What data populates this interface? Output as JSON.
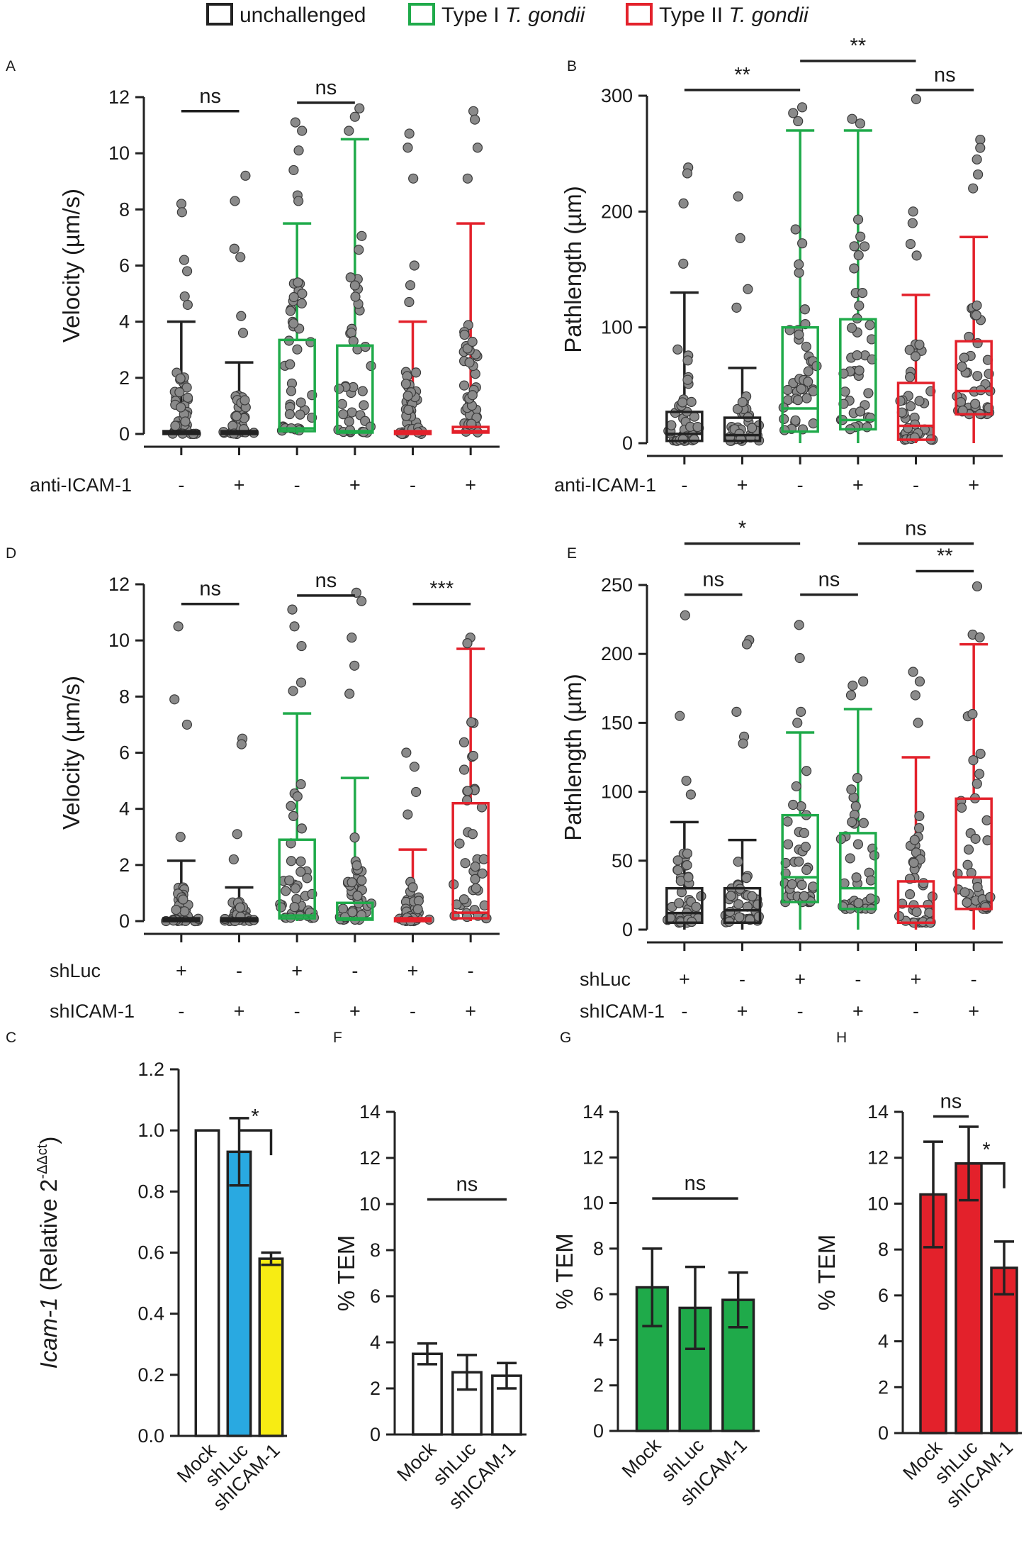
{
  "legend": [
    {
      "label": "unchallenged",
      "italic": "",
      "color": "#222222"
    },
    {
      "label": "Type I ",
      "italic": "T. gondii",
      "color": "#1faa4a"
    },
    {
      "label": "Type II ",
      "italic": "T. gondii",
      "color": "#e3212b"
    }
  ],
  "chart_data": [
    {
      "panel": "A",
      "type": "box-scatter",
      "ylabel": "Velocity (µm/s)",
      "ylim": [
        0,
        12
      ],
      "yticks": [
        0,
        2,
        4,
        6,
        8,
        10,
        12
      ],
      "condition_rows": [
        {
          "label": "anti-ICAM-1",
          "values": [
            "-",
            "+",
            "-",
            "+",
            "-",
            "+"
          ]
        }
      ],
      "groups": [
        {
          "color": "black",
          "min": 0,
          "q1": 0,
          "median": 0.05,
          "q3": 0.1,
          "max": 4.0,
          "outliers": [
            8.2,
            7.9,
            6.2,
            5.8,
            4.9,
            4.6
          ]
        },
        {
          "color": "black",
          "min": 0,
          "q1": 0,
          "median": 0.05,
          "q3": 0.1,
          "max": 2.55,
          "outliers": [
            9.2,
            8.3,
            6.6,
            6.3,
            4.2,
            3.6
          ]
        },
        {
          "color": "green",
          "min": 0,
          "q1": 0.1,
          "median": 0.2,
          "q3": 3.35,
          "max": 7.5,
          "outliers": [
            11.1,
            10.8,
            10.1,
            9.4,
            8.5,
            8.3
          ]
        },
        {
          "color": "green",
          "min": 0,
          "q1": 0.05,
          "median": 0.1,
          "q3": 3.15,
          "max": 10.5,
          "outliers": [
            11.6,
            11.3,
            10.8
          ]
        },
        {
          "color": "red",
          "min": 0,
          "q1": 0,
          "median": 0.05,
          "q3": 0.1,
          "max": 4.0,
          "outliers": [
            10.7,
            10.2,
            9.1,
            6.0,
            5.3,
            4.7
          ]
        },
        {
          "color": "red",
          "min": 0,
          "q1": 0.05,
          "median": 0.1,
          "q3": 0.25,
          "max": 7.5,
          "outliers": [
            11.5,
            11.2,
            10.2,
            9.1
          ]
        }
      ],
      "significance": [
        {
          "from": 1,
          "to": 2,
          "level": 11.5,
          "label": "ns"
        },
        {
          "from": 3,
          "to": 4,
          "level": 11.8,
          "label": "ns"
        }
      ]
    },
    {
      "panel": "B",
      "type": "box-scatter",
      "ylabel": "Pathlength (µm)",
      "ylim": [
        0,
        300
      ],
      "yticks": [
        0,
        100,
        200,
        300
      ],
      "condition_rows": [
        {
          "label": "anti-ICAM-1",
          "values": [
            "-",
            "+",
            "-",
            "+",
            "-",
            "+"
          ]
        }
      ],
      "groups": [
        {
          "color": "black",
          "min": 0,
          "q1": 2,
          "median": 8,
          "q3": 27,
          "max": 130,
          "outliers": [
            238,
            233,
            207,
            155
          ]
        },
        {
          "color": "black",
          "min": 0,
          "q1": 2,
          "median": 7,
          "q3": 22,
          "max": 65,
          "outliers": [
            213,
            177,
            133,
            117
          ]
        },
        {
          "color": "green",
          "min": 0,
          "q1": 10,
          "median": 30,
          "q3": 100,
          "max": 270,
          "outliers": [
            290,
            285,
            278
          ]
        },
        {
          "color": "green",
          "min": 0,
          "q1": 12,
          "median": 20,
          "q3": 107,
          "max": 270,
          "outliers": [
            280,
            276
          ]
        },
        {
          "color": "red",
          "min": 0,
          "q1": 3,
          "median": 15,
          "q3": 52,
          "max": 128,
          "outliers": [
            297,
            200,
            190,
            172,
            162
          ]
        },
        {
          "color": "red",
          "min": 0,
          "q1": 25,
          "median": 45,
          "q3": 88,
          "max": 178,
          "outliers": [
            262,
            255,
            245,
            232,
            220
          ]
        }
      ],
      "significance": [
        {
          "from": 1,
          "to": 3,
          "level": 305,
          "label": "**"
        },
        {
          "from": 3,
          "to": 5,
          "level": 330,
          "label": "**"
        },
        {
          "from": 5,
          "to": 6,
          "level": 305,
          "label": "ns"
        }
      ]
    },
    {
      "panel": "D",
      "type": "box-scatter",
      "ylabel": "Velocity (µm/s)",
      "ylim": [
        0,
        12
      ],
      "yticks": [
        0,
        2,
        4,
        6,
        8,
        10,
        12
      ],
      "condition_rows": [
        {
          "label": "shLuc",
          "values": [
            "+",
            "-",
            "+",
            "-",
            "+",
            "-"
          ]
        },
        {
          "label": "shICAM-1",
          "values": [
            "-",
            "+",
            "-",
            "+",
            "-",
            "+"
          ]
        }
      ],
      "groups": [
        {
          "color": "black",
          "min": 0,
          "q1": 0,
          "median": 0.05,
          "q3": 0.1,
          "max": 2.15,
          "outliers": [
            10.5,
            7.9,
            7.0,
            3.0
          ]
        },
        {
          "color": "black",
          "min": 0,
          "q1": 0,
          "median": 0.05,
          "q3": 0.1,
          "max": 1.2,
          "outliers": [
            6.5,
            6.3,
            3.1,
            2.2
          ]
        },
        {
          "color": "green",
          "min": 0,
          "q1": 0.1,
          "median": 0.2,
          "q3": 2.9,
          "max": 7.4,
          "outliers": [
            11.1,
            10.5,
            9.8,
            8.5,
            8.2
          ]
        },
        {
          "color": "green",
          "min": 0,
          "q1": 0.05,
          "median": 0.1,
          "q3": 0.65,
          "max": 5.1,
          "outliers": [
            11.7,
            11.4,
            10.1,
            9.1,
            8.1
          ]
        },
        {
          "color": "red",
          "min": 0,
          "q1": 0,
          "median": 0.05,
          "q3": 0.1,
          "max": 2.55,
          "outliers": [
            6.0,
            5.5,
            4.6,
            3.8
          ]
        },
        {
          "color": "red",
          "min": 0,
          "q1": 0.1,
          "median": 0.3,
          "q3": 4.2,
          "max": 9.7,
          "outliers": [
            10.1,
            9.9
          ]
        }
      ],
      "significance": [
        {
          "from": 1,
          "to": 2,
          "level": 11.3,
          "label": "ns"
        },
        {
          "from": 3,
          "to": 4,
          "level": 11.6,
          "label": "ns"
        },
        {
          "from": 5,
          "to": 6,
          "level": 11.3,
          "label": "***"
        }
      ]
    },
    {
      "panel": "E",
      "type": "box-scatter",
      "ylabel": "Pathlength (µm)",
      "ylim": [
        0,
        250
      ],
      "yticks": [
        0,
        50,
        100,
        150,
        200,
        250
      ],
      "condition_rows": [
        {
          "label": "shLuc",
          "values": [
            "+",
            "-",
            "+",
            "-",
            "+",
            "-"
          ]
        },
        {
          "label": "shICAM-1",
          "values": [
            "-",
            "+",
            "-",
            "+",
            "-",
            "+"
          ]
        }
      ],
      "groups": [
        {
          "color": "black",
          "min": 0,
          "q1": 5,
          "median": 12,
          "q3": 30,
          "max": 78,
          "outliers": [
            228,
            155,
            108,
            98
          ]
        },
        {
          "color": "black",
          "min": 0,
          "q1": 5,
          "median": 14,
          "q3": 30,
          "max": 65,
          "outliers": [
            210,
            207,
            158,
            140,
            135
          ]
        },
        {
          "color": "green",
          "min": 0,
          "q1": 20,
          "median": 38,
          "q3": 83,
          "max": 143,
          "outliers": [
            221,
            197,
            158,
            150
          ]
        },
        {
          "color": "green",
          "min": 0,
          "q1": 15,
          "median": 30,
          "q3": 70,
          "max": 160,
          "outliers": [
            180,
            177,
            170
          ]
        },
        {
          "color": "red",
          "min": 0,
          "q1": 5,
          "median": 17,
          "q3": 35,
          "max": 125,
          "outliers": [
            187,
            180,
            170,
            150
          ]
        },
        {
          "color": "red",
          "min": 0,
          "q1": 15,
          "median": 38,
          "q3": 95,
          "max": 207,
          "outliers": [
            249,
            214,
            212
          ]
        }
      ],
      "significance": [
        {
          "from": 1,
          "to": 3,
          "level": 280,
          "label": "*"
        },
        {
          "from": 4,
          "to": 6,
          "level": 280,
          "label": "ns"
        },
        {
          "from": 1,
          "to": 2,
          "level": 243,
          "label": "ns"
        },
        {
          "from": 3,
          "to": 4,
          "level": 243,
          "label": "ns"
        },
        {
          "from": 5,
          "to": 6,
          "level": 260,
          "label": "**"
        }
      ]
    },
    {
      "panel": "C",
      "type": "bar",
      "ylabel": "Icam-1 (Relative 2-ΔΔct)",
      "ylabel_italic": "Icam-1",
      "ylabel_rest": " (Relative 2",
      "ylabel_sup": "-ΔΔct",
      "ylabel_end": ")",
      "ylim": [
        0,
        1.2
      ],
      "yticks": [
        "0.0",
        "0.2",
        "0.4",
        "0.6",
        "0.8",
        "1.0",
        "1.2"
      ],
      "categories": [
        "Mock",
        "shLuc",
        "shICAM-1"
      ],
      "values": [
        1.0,
        0.93,
        0.58
      ],
      "errors": [
        0,
        0.11,
        0.02
      ],
      "colors": [
        "#ffffff",
        "#29a9e1",
        "#f7ec13"
      ],
      "significance": [
        {
          "from": 2,
          "to": 3,
          "level": 1.0,
          "label": "*",
          "style": "bracket"
        }
      ]
    },
    {
      "panel": "F",
      "type": "bar",
      "ylabel": "% TEM",
      "ylim": [
        0,
        14
      ],
      "yticks": [
        "0",
        "2",
        "4",
        "6",
        "8",
        "10",
        "12",
        "14"
      ],
      "categories": [
        "Mock",
        "shLuc",
        "shICAM-1"
      ],
      "values": [
        3.5,
        2.7,
        2.55
      ],
      "errors": [
        0.45,
        0.75,
        0.55
      ],
      "colors": [
        "#ffffff",
        "#ffffff",
        "#ffffff"
      ],
      "significance": [
        {
          "from": 1,
          "to": 3,
          "level": 10.2,
          "label": "ns",
          "style": "line"
        }
      ]
    },
    {
      "panel": "G",
      "type": "bar",
      "ylabel": "% TEM",
      "ylim": [
        0,
        14
      ],
      "yticks": [
        "0",
        "2",
        "4",
        "6",
        "8",
        "10",
        "12",
        "14"
      ],
      "categories": [
        "Mock",
        "shLuc",
        "shICAM-1"
      ],
      "values": [
        6.3,
        5.4,
        5.75
      ],
      "errors": [
        1.7,
        1.8,
        1.2
      ],
      "colors": [
        "#1faa4a",
        "#1faa4a",
        "#1faa4a"
      ],
      "significance": [
        {
          "from": 1,
          "to": 3,
          "level": 10.2,
          "label": "ns",
          "style": "line"
        }
      ]
    },
    {
      "panel": "H",
      "type": "bar",
      "ylabel": "% TEM",
      "ylim": [
        0,
        14
      ],
      "yticks": [
        "0",
        "2",
        "4",
        "6",
        "8",
        "10",
        "12",
        "14"
      ],
      "categories": [
        "Mock",
        "shLuc",
        "shICAM-1"
      ],
      "values": [
        10.4,
        11.75,
        7.2
      ],
      "errors": [
        2.3,
        1.6,
        1.15
      ],
      "colors": [
        "#e3212b",
        "#e3212b",
        "#e3212b"
      ],
      "significance": [
        {
          "from": 1,
          "to": 2,
          "level": 13.8,
          "label": "ns",
          "style": "line"
        },
        {
          "from": 2,
          "to": 3,
          "level": 11.75,
          "label": "*",
          "style": "bracket"
        }
      ]
    }
  ]
}
